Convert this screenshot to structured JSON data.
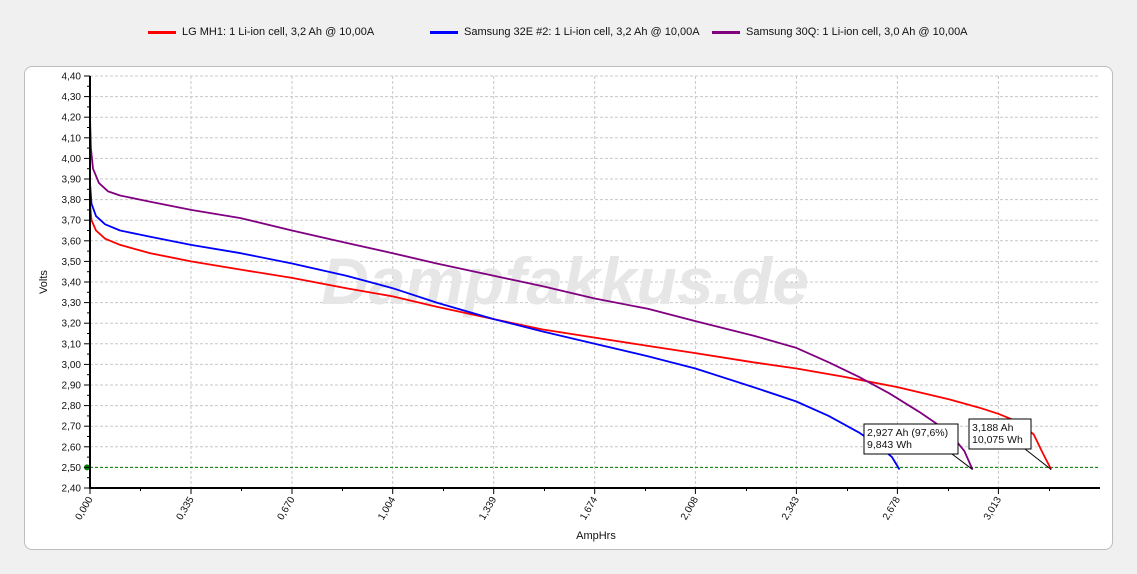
{
  "legend": [
    {
      "label": "LG MH1: 1 Li-ion cell, 3,2 Ah @ 10,00A",
      "color": "#ff0000"
    },
    {
      "label": "Samsung 32E #2: 1 Li-ion cell, 3,2 Ah @ 10,00A",
      "color": "#0000ff"
    },
    {
      "label": "Samsung 30Q: 1 Li-ion cell, 3,0 Ah @ 10,00A",
      "color": "#800080"
    }
  ],
  "watermark": "Dampfakkus.de",
  "chart_data": {
    "type": "line",
    "xlabel": "AmpHrs",
    "ylabel": "Volts",
    "xlim": [
      0,
      3.35
    ],
    "ylim": [
      2.4,
      4.4
    ],
    "x_ticks": [
      "0,000",
      "0,335",
      "0,670",
      "1,004",
      "1,339",
      "1,674",
      "2,008",
      "2,343",
      "2,678",
      "3,013"
    ],
    "y_ticks": [
      "2,40",
      "2,50",
      "2,60",
      "2,70",
      "2,80",
      "2,90",
      "3,00",
      "3,10",
      "3,20",
      "3,30",
      "3,40",
      "3,50",
      "3,60",
      "3,70",
      "3,80",
      "3,90",
      "4,00",
      "4,10",
      "4,20",
      "4,30",
      "4,40"
    ],
    "grid": true,
    "cutoff_line": {
      "y": 2.5,
      "color": "#008000"
    },
    "series": [
      {
        "name": "LG MH1: 1 Li-ion cell, 3,2 Ah @ 10,00A",
        "color": "#ff0000",
        "x": [
          0,
          0.005,
          0.02,
          0.05,
          0.1,
          0.2,
          0.335,
          0.5,
          0.67,
          0.85,
          1.004,
          1.15,
          1.339,
          1.5,
          1.674,
          1.85,
          2.008,
          2.2,
          2.343,
          2.5,
          2.678,
          2.85,
          2.95,
          3.013,
          3.08,
          3.13,
          3.16,
          3.188
        ],
        "y": [
          3.78,
          3.7,
          3.65,
          3.61,
          3.58,
          3.54,
          3.5,
          3.46,
          3.42,
          3.37,
          3.33,
          3.28,
          3.22,
          3.17,
          3.13,
          3.09,
          3.055,
          3.01,
          2.98,
          2.94,
          2.89,
          2.83,
          2.79,
          2.76,
          2.72,
          2.66,
          2.57,
          2.49
        ]
      },
      {
        "name": "Samsung 32E #2: 1 Li-ion cell, 3,2 Ah @ 10,00A",
        "color": "#0000ff",
        "x": [
          0,
          0.005,
          0.02,
          0.05,
          0.1,
          0.2,
          0.335,
          0.5,
          0.67,
          0.85,
          1.004,
          1.15,
          1.339,
          1.5,
          1.674,
          1.85,
          2.008,
          2.2,
          2.343,
          2.45,
          2.55,
          2.62,
          2.66,
          2.685
        ],
        "y": [
          3.88,
          3.78,
          3.72,
          3.68,
          3.65,
          3.62,
          3.58,
          3.54,
          3.49,
          3.43,
          3.37,
          3.3,
          3.22,
          3.16,
          3.1,
          3.04,
          2.98,
          2.89,
          2.82,
          2.75,
          2.67,
          2.6,
          2.55,
          2.49
        ]
      },
      {
        "name": "Samsung 30Q: 1 Li-ion cell, 3,0 Ah @ 10,00A",
        "color": "#800080",
        "x": [
          0,
          0.003,
          0.01,
          0.03,
          0.06,
          0.1,
          0.2,
          0.335,
          0.5,
          0.67,
          0.85,
          1.004,
          1.15,
          1.339,
          1.5,
          1.674,
          1.85,
          2.008,
          2.2,
          2.343,
          2.45,
          2.55,
          2.65,
          2.75,
          2.85,
          2.9,
          2.927
        ],
        "y": [
          4.2,
          4.05,
          3.95,
          3.88,
          3.84,
          3.82,
          3.79,
          3.75,
          3.71,
          3.65,
          3.59,
          3.54,
          3.49,
          3.43,
          3.38,
          3.32,
          3.27,
          3.21,
          3.14,
          3.08,
          3.01,
          2.94,
          2.86,
          2.77,
          2.67,
          2.58,
          2.49
        ]
      }
    ],
    "annotations": [
      {
        "lines": [
          "2,927 Ah (97,6%)",
          "9,843 Wh"
        ]
      },
      {
        "lines": [
          "3,188 Ah",
          "10,075 Wh"
        ]
      }
    ]
  }
}
